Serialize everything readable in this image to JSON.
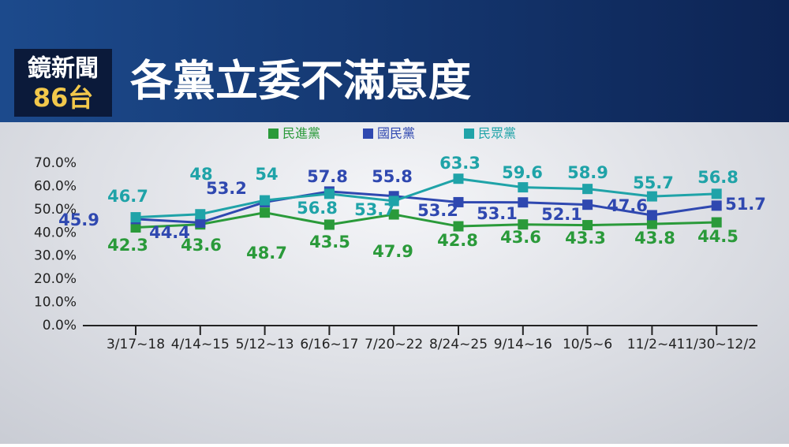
{
  "logo": {
    "line1": "鏡新聞",
    "line2": "86台"
  },
  "chart_data": {
    "type": "line",
    "title": "各黨立委不滿意度",
    "categories": [
      "3/17~18",
      "4/14~15",
      "5/12~13",
      "6/16~17",
      "7/20~22",
      "8/24~25",
      "9/14~16",
      "10/5~6",
      "11/2~4",
      "11/30~12/2"
    ],
    "series": [
      {
        "name": "民進黨",
        "color": "#2a9a3a",
        "values": [
          42.3,
          43.6,
          48.7,
          43.5,
          47.9,
          42.8,
          43.6,
          43.3,
          43.8,
          44.5
        ]
      },
      {
        "name": "國民黨",
        "color": "#2f48b0",
        "values": [
          45.9,
          44.4,
          53.2,
          57.8,
          55.8,
          53.2,
          53.1,
          52.1,
          47.6,
          51.7
        ]
      },
      {
        "name": "民眾黨",
        "color": "#1fa3a8",
        "values": [
          46.7,
          48.0,
          54.0,
          56.8,
          53.7,
          63.3,
          59.6,
          58.9,
          55.7,
          56.8
        ]
      }
    ],
    "ylim": [
      0,
      70
    ],
    "yticks": [
      {
        "value": 0,
        "label": "0.0%"
      },
      {
        "value": 10,
        "label": "10.0%"
      },
      {
        "value": 20,
        "label": "20.0%"
      },
      {
        "value": 30,
        "label": "30.0%"
      },
      {
        "value": 40,
        "label": "40.0%"
      },
      {
        "value": 50,
        "label": "50.0%"
      },
      {
        "value": 60,
        "label": "60.0%"
      },
      {
        "value": 70,
        "label": "70.0%"
      }
    ],
    "legend": "top"
  }
}
